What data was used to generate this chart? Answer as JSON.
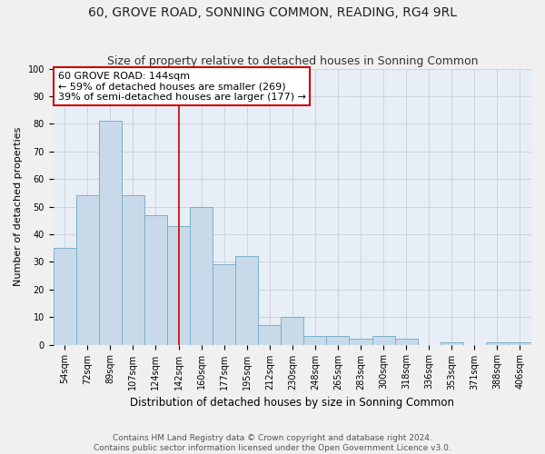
{
  "title": "60, GROVE ROAD, SONNING COMMON, READING, RG4 9RL",
  "subtitle": "Size of property relative to detached houses in Sonning Common",
  "xlabel": "Distribution of detached houses by size in Sonning Common",
  "ylabel": "Number of detached properties",
  "categories": [
    "54sqm",
    "72sqm",
    "89sqm",
    "107sqm",
    "124sqm",
    "142sqm",
    "160sqm",
    "177sqm",
    "195sqm",
    "212sqm",
    "230sqm",
    "248sqm",
    "265sqm",
    "283sqm",
    "300sqm",
    "318sqm",
    "336sqm",
    "353sqm",
    "371sqm",
    "388sqm",
    "406sqm"
  ],
  "values": [
    35,
    54,
    81,
    54,
    47,
    43,
    50,
    29,
    32,
    7,
    10,
    3,
    3,
    2,
    3,
    2,
    0,
    1,
    0,
    1,
    1
  ],
  "bar_color": "#c8daea",
  "bar_edge_color": "#7aafc8",
  "reference_line_index": 5,
  "annotation_text": "60 GROVE ROAD: 144sqm\n← 59% of detached houses are smaller (269)\n39% of semi-detached houses are larger (177) →",
  "annotation_box_facecolor": "#ffffff",
  "annotation_box_edgecolor": "#cc0000",
  "ylim": [
    0,
    100
  ],
  "yticks": [
    0,
    10,
    20,
    30,
    40,
    50,
    60,
    70,
    80,
    90,
    100
  ],
  "grid_color": "#c8d0dc",
  "plot_bg_color": "#e8eef6",
  "fig_bg_color": "#f0f0f0",
  "footer_line1": "Contains HM Land Registry data © Crown copyright and database right 2024.",
  "footer_line2": "Contains public sector information licensed under the Open Government Licence v3.0.",
  "title_fontsize": 10,
  "subtitle_fontsize": 9,
  "xlabel_fontsize": 8.5,
  "ylabel_fontsize": 8,
  "tick_fontsize": 7,
  "annotation_fontsize": 8,
  "footer_fontsize": 6.5
}
